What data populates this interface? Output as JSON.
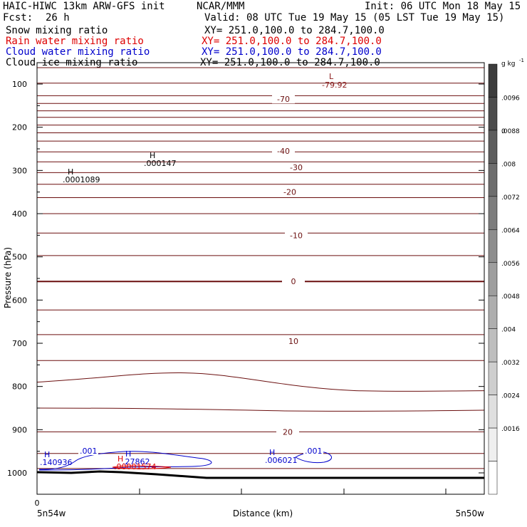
{
  "header": {
    "model": "HAIC-HIWC 13km ARW-GFS init",
    "org": "NCAR/MMM",
    "init": "Init: 06 UTC Mon 18 May 15",
    "fcst_label": "Fcst:",
    "fcst_value": "26 h",
    "valid": "Valid: 08 UTC Tue 19 May 15 (05 LST Tue 19 May 15)"
  },
  "fields": [
    {
      "label": "Snow mixing ratio",
      "xy": "XY= 251.0,100.0 to 284.7,100.0",
      "color": "#000000"
    },
    {
      "label": "Rain water mixing ratio",
      "xy": "XY= 251.0,100.0 to 284.7,100.0",
      "color": "#dd0000"
    },
    {
      "label": "Cloud water mixing ratio",
      "xy": "XY= 251.0,100.0 to 284.7,100.0",
      "color": "#0000cc"
    },
    {
      "label": "Cloud ice mixing ratio",
      "xy": "XY= 251.0,100.0 to 284.7,100.0",
      "color": "#000000"
    }
  ],
  "chart_data": {
    "type": "contour-cross-section",
    "xlabel": "Distance (km)",
    "ylabel": "Pressure (hPa)",
    "x_start_label": "5n54w",
    "x_end_label": "5n50w",
    "x_zero_label": "0",
    "ylim": [
      1050,
      50
    ],
    "yticks": [
      100,
      200,
      300,
      400,
      500,
      600,
      700,
      800,
      900,
      1000
    ],
    "temperature_contours": [
      {
        "label": "-70",
        "p": 135
      },
      {
        "label": "-40",
        "p": 255
      },
      {
        "label": "-30",
        "p": 293
      },
      {
        "label": "-20",
        "p": 350
      },
      {
        "label": "-10",
        "p": 450
      },
      {
        "label": "0",
        "p": 557
      },
      {
        "label": "10",
        "p": 695
      },
      {
        "label": "20",
        "p": 905
      }
    ],
    "temperature_line_pressures": [
      62,
      98,
      127,
      145,
      162,
      177,
      195,
      213,
      232,
      257,
      280,
      305,
      332,
      363,
      400,
      445,
      497,
      557,
      623,
      680,
      740,
      790,
      850,
      905,
      955,
      990
    ],
    "extrema": [
      {
        "type": "L",
        "value": "-79.92",
        "color": "#8b1a1a"
      },
      {
        "type": "H",
        "value": ".000147",
        "color": "#000000"
      },
      {
        "type": "H",
        "value": ".0001089",
        "color": "#000000"
      },
      {
        "type": "H",
        "value": ".140936",
        "color": "#0000cc"
      },
      {
        "type": "H",
        "value": ".27862",
        "color": "#0000cc"
      },
      {
        "type": "H",
        "value": ".00001574",
        "color": "#dd0000"
      },
      {
        "type": "H",
        "value": ".006021",
        "color": "#0000cc"
      }
    ],
    "cloud_contour_labels": [
      ".001",
      ".001"
    ],
    "colorbar": {
      "unit": "g kg",
      "unit_exp": "-1",
      "top_label": "0",
      "levels": [
        ".0096",
        ".0088",
        ".008",
        ".0072",
        ".0064",
        ".0056",
        ".0048",
        ".004",
        ".0032",
        ".0024",
        ".0016"
      ]
    }
  }
}
